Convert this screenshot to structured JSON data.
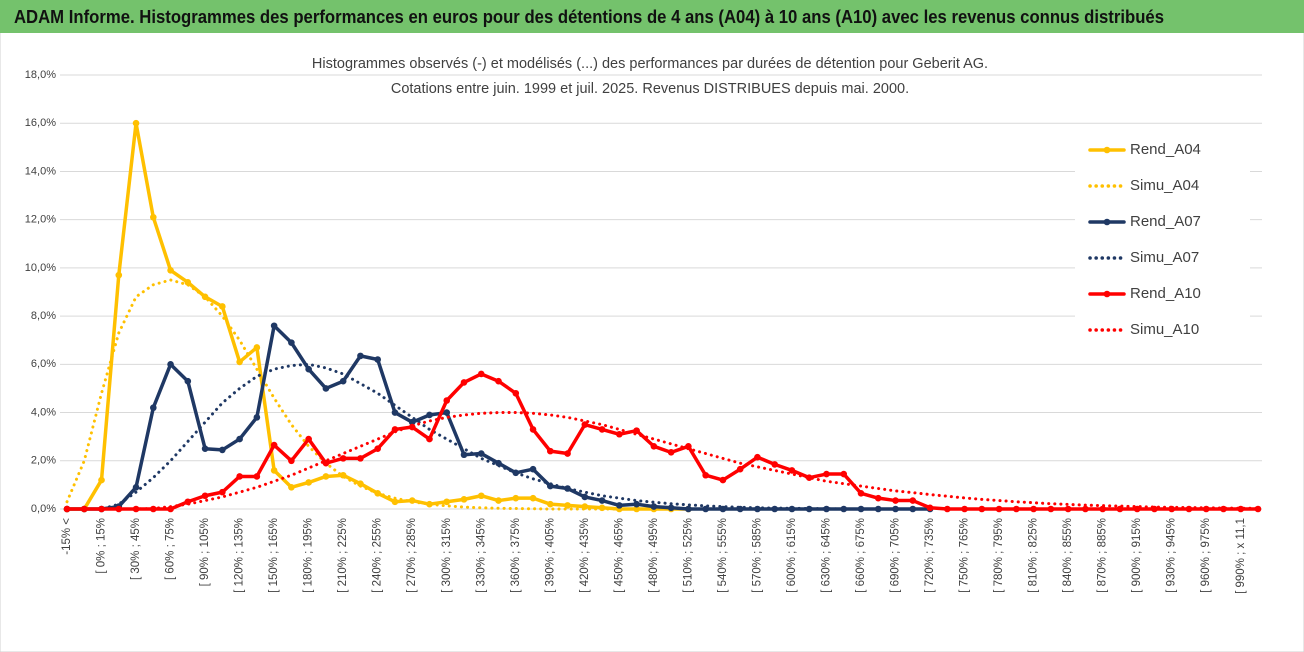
{
  "header": {
    "title": "ADAM Informe. Histogrammes des performances en euros pour des détentions de 4 ans (A04) à 10 ans (A10) avec les revenus connus distribués"
  },
  "chart_data": {
    "type": "line",
    "title": "Histogrammes observés (-) et modélisés (...) des performances par durées de détention pour Geberit AG.",
    "subtitle": "Cotations entre juin. 1999 et juil. 2025. Revenus DISTRIBUES depuis mai. 2000.",
    "categories": [
      "-15% <",
      null,
      "[ 0% ; 15%",
      null,
      "[ 30% ; 45%",
      null,
      "[ 60% ; 75%",
      null,
      "[ 90% ; 105%",
      null,
      "[ 120% ; 135%",
      null,
      "[ 150% ; 165%",
      null,
      "[ 180% ; 195%",
      null,
      "[ 210% ; 225%",
      null,
      "[ 240% ; 255%",
      null,
      "[ 270% ; 285%",
      null,
      "[ 300% ; 315%",
      null,
      "[ 330% ; 345%",
      null,
      "[ 360% ; 375%",
      null,
      "[ 390% ; 405%",
      null,
      "[ 420% ; 435%",
      null,
      "[ 450% ; 465%",
      null,
      "[ 480% ; 495%",
      null,
      "[ 510% ; 525%",
      null,
      "[ 540% ; 555%",
      null,
      "[ 570% ; 585%",
      null,
      "[ 600% ; 615%",
      null,
      "[ 630% ; 645%",
      null,
      "[ 660% ; 675%",
      null,
      "[ 690% ; 705%",
      null,
      "[ 720% ; 735%",
      null,
      "[ 750% ; 765%",
      null,
      "[ 780% ; 795%",
      null,
      "[ 810% ; 825%",
      null,
      "[ 840% ; 855%",
      null,
      "[ 870% ; 885%",
      null,
      "[ 900% ; 915%",
      null,
      "[ 930% ; 945%",
      null,
      "[ 960% ; 975%",
      null,
      "[ 990% ; x 11,1",
      null
    ],
    "series": [
      {
        "name": "Rend_A04",
        "color": "#ffc000",
        "line_style": "solid",
        "marker": true,
        "values": [
          0,
          0,
          1.2,
          9.7,
          16.0,
          12.1,
          9.9,
          9.4,
          8.8,
          8.4,
          6.1,
          6.7,
          1.6,
          0.9,
          1.1,
          1.35,
          1.4,
          1.05,
          0.65,
          0.3,
          0.35,
          0.2,
          0.3,
          0.4,
          0.55,
          0.35,
          0.45,
          0.45,
          0.2,
          0.15,
          0.1,
          0.05,
          0,
          0,
          0,
          0,
          0,
          null,
          null,
          null,
          null,
          null,
          null,
          null,
          null,
          null,
          null,
          null,
          null,
          null,
          null,
          null,
          null,
          null,
          null,
          null,
          null,
          null,
          null,
          null,
          null,
          null,
          null,
          null,
          null,
          null,
          null,
          null,
          null,
          null
        ]
      },
      {
        "name": "Simu_A04",
        "color": "#ffc000",
        "line_style": "dotted",
        "marker": false,
        "values": [
          0.3,
          2.0,
          4.8,
          7.3,
          8.8,
          9.3,
          9.5,
          9.3,
          8.8,
          8.0,
          7.0,
          5.8,
          4.6,
          3.5,
          2.6,
          1.9,
          1.35,
          0.95,
          0.65,
          0.45,
          0.3,
          0.2,
          0.13,
          0.08,
          0.05,
          0.03,
          0.02,
          0.01,
          0,
          0,
          0,
          0,
          0,
          0,
          0,
          0,
          0,
          null,
          null,
          null,
          null,
          null,
          null,
          null,
          null,
          null,
          null,
          null,
          null,
          null,
          null,
          null,
          null,
          null,
          null,
          null,
          null,
          null,
          null,
          null,
          null,
          null,
          null,
          null,
          null,
          null,
          null,
          null,
          null,
          null
        ]
      },
      {
        "name": "Rend_A07",
        "color": "#1f3864",
        "line_style": "solid",
        "marker": true,
        "values": [
          0,
          0,
          0,
          0.1,
          0.9,
          4.2,
          6.0,
          5.3,
          2.5,
          2.45,
          2.9,
          3.8,
          7.6,
          6.9,
          5.8,
          5.0,
          5.3,
          6.35,
          6.2,
          4.0,
          3.6,
          3.9,
          4.0,
          2.25,
          2.3,
          1.9,
          1.5,
          1.65,
          0.95,
          0.85,
          0.5,
          0.35,
          0.15,
          0.2,
          0.1,
          0.05,
          0,
          0,
          0,
          0,
          0,
          0,
          0,
          0,
          0,
          0,
          0,
          0,
          0,
          0,
          0,
          null,
          null,
          null,
          null,
          null,
          null,
          null,
          null,
          null,
          null,
          null,
          null,
          null,
          null,
          null,
          null,
          null,
          null,
          null
        ]
      },
      {
        "name": "Simu_A07",
        "color": "#1f3864",
        "line_style": "dotted",
        "marker": false,
        "values": [
          0,
          0,
          0,
          0.2,
          0.7,
          1.3,
          2.0,
          2.8,
          3.6,
          4.4,
          5.0,
          5.5,
          5.8,
          5.95,
          6.0,
          5.85,
          5.6,
          5.2,
          4.8,
          4.3,
          3.8,
          3.3,
          2.9,
          2.5,
          2.1,
          1.8,
          1.5,
          1.25,
          1.05,
          0.85,
          0.7,
          0.55,
          0.45,
          0.35,
          0.28,
          0.22,
          0.17,
          0.13,
          0.1,
          0.07,
          0.05,
          0.04,
          0.03,
          0.02,
          0.01,
          0,
          0,
          0,
          0,
          0,
          0,
          null,
          null,
          null,
          null,
          null,
          null,
          null,
          null,
          null,
          null,
          null,
          null,
          null,
          null,
          null,
          null,
          null,
          null,
          null
        ]
      },
      {
        "name": "Rend_A10",
        "color": "#ff0000",
        "line_style": "solid",
        "marker": true,
        "values": [
          0,
          0,
          0,
          0,
          0,
          0,
          0,
          0.3,
          0.55,
          0.7,
          1.35,
          1.35,
          2.65,
          2.0,
          2.9,
          1.9,
          2.1,
          2.1,
          2.5,
          3.3,
          3.4,
          2.9,
          4.5,
          5.25,
          5.6,
          5.3,
          4.8,
          3.3,
          2.4,
          2.3,
          3.5,
          3.3,
          3.1,
          3.25,
          2.6,
          2.35,
          2.6,
          1.4,
          1.2,
          1.65,
          2.15,
          1.85,
          1.6,
          1.3,
          1.45,
          1.45,
          0.65,
          0.45,
          0.35,
          0.35,
          0.05,
          0,
          0,
          0,
          0,
          0,
          0,
          0,
          0,
          0,
          0,
          0,
          0,
          0,
          0,
          0,
          0,
          0,
          0,
          0
        ]
      },
      {
        "name": "Simu_A10",
        "color": "#ff0000",
        "line_style": "dotted",
        "marker": false,
        "values": [
          0,
          0,
          0,
          0,
          0,
          0.02,
          0.1,
          0.2,
          0.35,
          0.5,
          0.7,
          0.9,
          1.15,
          1.4,
          1.7,
          2.0,
          2.3,
          2.6,
          2.9,
          3.2,
          3.45,
          3.65,
          3.8,
          3.9,
          3.97,
          4.0,
          4.0,
          3.97,
          3.9,
          3.8,
          3.65,
          3.5,
          3.3,
          3.1,
          2.9,
          2.7,
          2.5,
          2.3,
          2.1,
          1.9,
          1.75,
          1.6,
          1.45,
          1.3,
          1.15,
          1.05,
          0.95,
          0.85,
          0.75,
          0.68,
          0.6,
          0.53,
          0.46,
          0.4,
          0.35,
          0.3,
          0.26,
          0.22,
          0.19,
          0.16,
          0.14,
          0.12,
          0.1,
          0.08,
          0.07,
          0.06,
          0.05,
          0.04,
          0.03,
          0.03
        ]
      }
    ],
    "ylim": [
      0,
      18
    ],
    "yticks": [
      {
        "value": 0,
        "label": "0,0%"
      },
      {
        "value": 2,
        "label": "2,0%"
      },
      {
        "value": 4,
        "label": "4,0%"
      },
      {
        "value": 6,
        "label": "6,0%"
      },
      {
        "value": 8,
        "label": "8,0%"
      },
      {
        "value": 10,
        "label": "10,0%"
      },
      {
        "value": 12,
        "label": "12,0%"
      },
      {
        "value": 14,
        "label": "14,0%"
      },
      {
        "value": 16,
        "label": "16,0%"
      },
      {
        "value": 18,
        "label": "18,0%"
      }
    ],
    "grid": true,
    "legend": "right"
  }
}
